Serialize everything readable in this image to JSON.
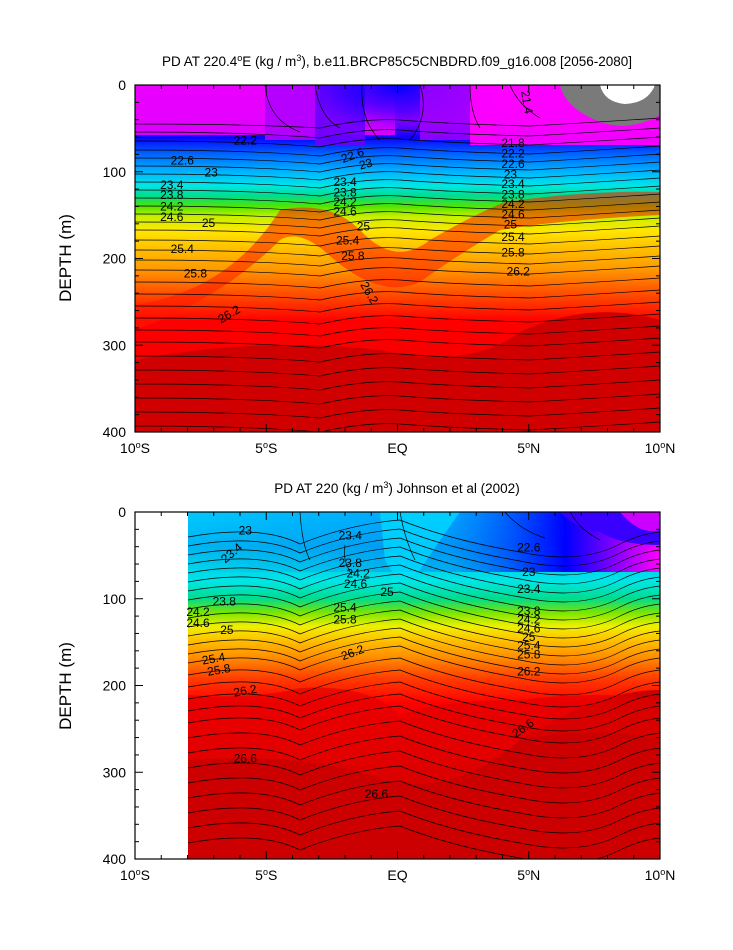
{
  "chart_data": [
    {
      "type": "contour",
      "title": "PD AT 220.4°E (kg / m³), b.e11.BRCP85C5CNBDRD.f09_g16.008 [2056-2080]",
      "title_parts": {
        "pre": "PD AT 220.4",
        "sup1": "o",
        "mid": "E (kg / m",
        "sup2": "3",
        "post": "), b.e11.BRCP85C5CNBDRD.f09_g16.008 [2056-2080]"
      },
      "ylabel": "DEPTH (m)",
      "xlabel": "",
      "xlim": [
        -10,
        10
      ],
      "ylim": [
        400,
        0
      ],
      "x_ticks": [
        {
          "value": -10,
          "num": "10",
          "sup": "o",
          "hem": "S"
        },
        {
          "value": -5,
          "num": "5",
          "sup": "o",
          "hem": "S"
        },
        {
          "value": 0,
          "num": "EQ",
          "sup": "",
          "hem": ""
        },
        {
          "value": 5,
          "num": "5",
          "sup": "o",
          "hem": "N"
        },
        {
          "value": 10,
          "num": "10",
          "sup": "o",
          "hem": "N"
        }
      ],
      "y_ticks": [
        0,
        100,
        200,
        300,
        400
      ],
      "contour_labels": [
        {
          "text": "21.4",
          "x": 4.9,
          "y": 20,
          "rot": 80
        },
        {
          "text": "22.2",
          "x": -5.8,
          "y": 65,
          "rot": 0
        },
        {
          "text": "22.6",
          "x": -8.2,
          "y": 88,
          "rot": 0
        },
        {
          "text": "23",
          "x": -7.1,
          "y": 102,
          "rot": 0
        },
        {
          "text": "23.4",
          "x": -8.6,
          "y": 116,
          "rot": 0
        },
        {
          "text": "23.8",
          "x": -8.6,
          "y": 128,
          "rot": 0
        },
        {
          "text": "24.2",
          "x": -8.6,
          "y": 141,
          "rot": 0
        },
        {
          "text": "24.6",
          "x": -8.6,
          "y": 153,
          "rot": 0
        },
        {
          "text": "25",
          "x": -7.2,
          "y": 160,
          "rot": 0
        },
        {
          "text": "25.4",
          "x": -8.2,
          "y": 190,
          "rot": 0
        },
        {
          "text": "25.8",
          "x": -7.7,
          "y": 218,
          "rot": 0
        },
        {
          "text": "26.2",
          "x": -6.4,
          "y": 265,
          "rot": -30
        },
        {
          "text": "22.6",
          "x": -1.7,
          "y": 82,
          "rot": -20
        },
        {
          "text": "23",
          "x": -1.2,
          "y": 92,
          "rot": -15
        },
        {
          "text": "23.4",
          "x": -2.0,
          "y": 113,
          "rot": 0
        },
        {
          "text": "23.8",
          "x": -2.0,
          "y": 125,
          "rot": 0
        },
        {
          "text": "24.2",
          "x": -2.0,
          "y": 136,
          "rot": 0
        },
        {
          "text": "24.6",
          "x": -2.0,
          "y": 147,
          "rot": 0
        },
        {
          "text": "25",
          "x": -1.3,
          "y": 164,
          "rot": 0
        },
        {
          "text": "25.4",
          "x": -1.9,
          "y": 180,
          "rot": 0
        },
        {
          "text": "25.8",
          "x": -1.7,
          "y": 198,
          "rot": 0
        },
        {
          "text": "26.2",
          "x": -1.1,
          "y": 240,
          "rot": 60
        },
        {
          "text": "21.8",
          "x": 4.4,
          "y": 68,
          "rot": 0
        },
        {
          "text": "22.2",
          "x": 4.4,
          "y": 80,
          "rot": 0
        },
        {
          "text": "22.6",
          "x": 4.4,
          "y": 92,
          "rot": 0
        },
        {
          "text": "23",
          "x": 4.3,
          "y": 104,
          "rot": 0
        },
        {
          "text": "23.4",
          "x": 4.4,
          "y": 115,
          "rot": 0
        },
        {
          "text": "23.8",
          "x": 4.4,
          "y": 127,
          "rot": 0
        },
        {
          "text": "24.2",
          "x": 4.4,
          "y": 138,
          "rot": 0
        },
        {
          "text": "24.6",
          "x": 4.4,
          "y": 150,
          "rot": 0
        },
        {
          "text": "25",
          "x": 4.3,
          "y": 162,
          "rot": 0
        },
        {
          "text": "25.4",
          "x": 4.4,
          "y": 176,
          "rot": 0
        },
        {
          "text": "25.8",
          "x": 4.4,
          "y": 194,
          "rot": 0
        },
        {
          "text": "26.2",
          "x": 4.6,
          "y": 216,
          "rot": 0
        }
      ]
    },
    {
      "type": "contour",
      "title": "PD AT 220 (kg / m³) Johnson et al (2002)",
      "title_parts": {
        "pre": "PD AT 220 (kg / m",
        "sup1": "",
        "mid": "",
        "sup2": "3",
        "post": ") Johnson et al (2002)"
      },
      "ylabel": "DEPTH (m)",
      "xlabel": "",
      "xlim": [
        -10,
        10
      ],
      "ylim": [
        400,
        0
      ],
      "x_ticks": [
        {
          "value": -10,
          "num": "10",
          "sup": "o",
          "hem": "S"
        },
        {
          "value": -5,
          "num": "5",
          "sup": "o",
          "hem": "S"
        },
        {
          "value": 0,
          "num": "EQ",
          "sup": "",
          "hem": ""
        },
        {
          "value": 5,
          "num": "5",
          "sup": "o",
          "hem": "N"
        },
        {
          "value": 10,
          "num": "10",
          "sup": "o",
          "hem": "N"
        }
      ],
      "y_ticks": [
        0,
        100,
        200,
        300,
        400
      ],
      "contour_labels": [
        {
          "text": "22.6",
          "x": 5.0,
          "y": 42,
          "rot": 0
        },
        {
          "text": "23",
          "x": -5.8,
          "y": 22,
          "rot": 0
        },
        {
          "text": "23",
          "x": 5.0,
          "y": 70,
          "rot": 0
        },
        {
          "text": "23.4",
          "x": -1.8,
          "y": 28,
          "rot": 0
        },
        {
          "text": "23.4",
          "x": -6.3,
          "y": 48,
          "rot": -40
        },
        {
          "text": "23.4",
          "x": 5.0,
          "y": 90,
          "rot": 0
        },
        {
          "text": "23.8",
          "x": -1.8,
          "y": 60,
          "rot": 0
        },
        {
          "text": "24.2",
          "x": -1.5,
          "y": 72,
          "rot": 0
        },
        {
          "text": "24.6",
          "x": -1.6,
          "y": 84,
          "rot": 0
        },
        {
          "text": "25",
          "x": -0.4,
          "y": 93,
          "rot": 0
        },
        {
          "text": "25.4",
          "x": -2.0,
          "y": 111,
          "rot": 0
        },
        {
          "text": "25.8",
          "x": -2.0,
          "y": 125,
          "rot": 0
        },
        {
          "text": "26.2",
          "x": -1.7,
          "y": 163,
          "rot": -20
        },
        {
          "text": "23.8",
          "x": -6.6,
          "y": 104,
          "rot": 0
        },
        {
          "text": "24.2",
          "x": -7.6,
          "y": 116,
          "rot": 0
        },
        {
          "text": "24.6",
          "x": -7.6,
          "y": 129,
          "rot": 0
        },
        {
          "text": "25",
          "x": -6.5,
          "y": 137,
          "rot": 0
        },
        {
          "text": "25.4",
          "x": -7.0,
          "y": 170,
          "rot": -10
        },
        {
          "text": "25.8",
          "x": -6.8,
          "y": 183,
          "rot": -10
        },
        {
          "text": "26.2",
          "x": -5.8,
          "y": 207,
          "rot": -10
        },
        {
          "text": "23.8",
          "x": 5.0,
          "y": 115,
          "rot": 0
        },
        {
          "text": "24.2",
          "x": 5.0,
          "y": 125,
          "rot": 0
        },
        {
          "text": "24.6",
          "x": 5.0,
          "y": 135,
          "rot": 0
        },
        {
          "text": "25",
          "x": 5.0,
          "y": 145,
          "rot": 0
        },
        {
          "text": "25.4",
          "x": 5.0,
          "y": 155,
          "rot": 0
        },
        {
          "text": "25.8",
          "x": 5.0,
          "y": 165,
          "rot": 0
        },
        {
          "text": "26.2",
          "x": 5.0,
          "y": 185,
          "rot": 0
        },
        {
          "text": "26.6",
          "x": 4.8,
          "y": 250,
          "rot": -35
        },
        {
          "text": "26.6",
          "x": -5.8,
          "y": 285,
          "rot": 0
        },
        {
          "text": "26.6",
          "x": -0.8,
          "y": 326,
          "rot": 0
        }
      ]
    }
  ]
}
